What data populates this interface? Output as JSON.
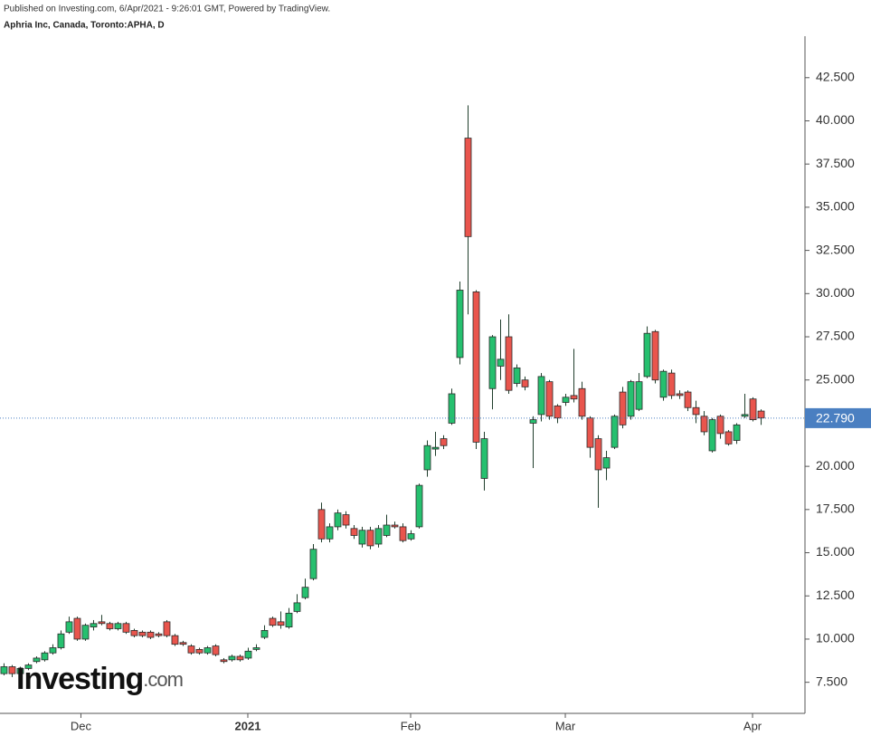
{
  "header": {
    "published": "Published on Investing.com, 6/Apr/2021 - 9:26:01 GMT, Powered by TradingView.",
    "symbol": "Aphria Inc, Canada, Toronto:APHA, D"
  },
  "logo": {
    "brand": "Investing",
    "suffix": ".com"
  },
  "chart_data": {
    "type": "candlestick",
    "up_color": "#26c06f",
    "down_color": "#e9554d",
    "open": [
      8.0,
      8.4,
      8.0,
      8.3,
      8.7,
      8.8,
      9.2,
      9.5,
      10.4,
      11.2,
      10.0,
      10.7,
      11.0,
      10.9,
      10.6,
      10.9,
      10.5,
      10.4,
      10.4,
      10.3,
      11.0,
      10.2,
      9.8,
      9.6,
      9.4,
      9.2,
      9.6,
      8.8,
      8.8,
      9.0,
      8.9,
      9.4,
      10.1,
      11.2,
      11.0,
      10.7,
      11.6,
      12.4,
      13.5,
      17.5,
      15.8,
      16.5,
      17.2,
      16.4,
      15.5,
      16.3,
      15.5,
      16.0,
      16.6,
      16.5,
      15.8,
      16.5,
      19.8,
      21.0,
      21.6,
      22.5,
      26.3,
      39.0,
      30.1,
      19.3,
      24.5,
      25.8,
      27.5,
      24.8,
      25.0,
      22.5,
      23.0,
      24.9,
      23.5,
      23.7,
      24.1,
      24.5,
      22.8,
      21.6,
      19.9,
      21.1,
      24.3,
      22.9,
      23.3,
      25.2,
      27.8,
      24.0,
      25.4,
      24.2,
      24.3,
      23.4,
      22.9,
      20.9,
      22.9,
      22.0,
      21.5,
      22.9,
      23.9,
      23.2
    ],
    "high": [
      8.6,
      8.5,
      8.4,
      8.6,
      9.0,
      9.3,
      9.7,
      10.5,
      11.3,
      11.3,
      10.9,
      11.1,
      11.4,
      11.0,
      11.0,
      11.0,
      10.6,
      10.5,
      10.5,
      10.4,
      11.1,
      10.3,
      9.9,
      9.7,
      9.5,
      9.6,
      9.7,
      8.9,
      9.1,
      9.1,
      9.5,
      9.7,
      10.8,
      11.3,
      11.6,
      11.8,
      12.6,
      13.5,
      15.5,
      17.9,
      16.7,
      17.5,
      17.4,
      16.6,
      16.5,
      16.5,
      16.6,
      17.2,
      16.8,
      16.7,
      16.3,
      19.0,
      21.5,
      22.0,
      21.8,
      24.5,
      30.7,
      40.9,
      30.2,
      22.0,
      27.6,
      28.5,
      28.8,
      25.9,
      25.2,
      22.9,
      25.4,
      25.0,
      23.6,
      24.2,
      26.8,
      24.9,
      22.9,
      21.8,
      20.9,
      23.0,
      24.6,
      25.0,
      25.4,
      28.1,
      27.9,
      25.6,
      25.6,
      24.4,
      24.4,
      23.8,
      23.2,
      22.8,
      23.0,
      22.1,
      22.5,
      24.2,
      24.0,
      23.3
    ],
    "low": [
      7.9,
      7.8,
      7.9,
      8.2,
      8.6,
      8.7,
      9.1,
      9.4,
      10.3,
      9.9,
      9.9,
      10.5,
      10.8,
      10.5,
      10.5,
      10.3,
      10.1,
      10.1,
      10.0,
      10.1,
      10.1,
      9.6,
      9.6,
      9.1,
      9.1,
      9.1,
      9.0,
      8.6,
      8.7,
      8.7,
      8.8,
      9.3,
      10.0,
      10.7,
      10.6,
      10.6,
      11.5,
      12.3,
      13.4,
      15.6,
      15.6,
      16.3,
      16.4,
      15.8,
      15.3,
      15.2,
      15.3,
      15.9,
      16.4,
      15.6,
      15.7,
      16.4,
      19.4,
      20.6,
      21.0,
      22.4,
      25.9,
      28.8,
      21.0,
      18.6,
      23.3,
      25.0,
      24.2,
      24.6,
      24.4,
      19.9,
      22.6,
      22.7,
      22.5,
      23.5,
      23.7,
      22.7,
      20.5,
      17.6,
      19.2,
      21.0,
      22.2,
      22.7,
      23.2,
      25.1,
      24.8,
      23.8,
      23.9,
      23.9,
      23.2,
      22.5,
      21.8,
      20.8,
      21.6,
      21.2,
      21.3,
      22.8,
      22.6,
      22.4
    ],
    "close": [
      8.4,
      8.0,
      8.3,
      8.5,
      8.9,
      9.2,
      9.5,
      10.3,
      11.0,
      10.0,
      10.8,
      10.9,
      10.9,
      10.6,
      10.9,
      10.4,
      10.2,
      10.2,
      10.1,
      10.2,
      10.2,
      9.7,
      9.7,
      9.2,
      9.2,
      9.5,
      9.1,
      8.7,
      9.0,
      8.8,
      9.3,
      9.5,
      10.5,
      10.8,
      10.8,
      11.5,
      12.1,
      13.0,
      15.2,
      15.8,
      16.5,
      17.3,
      16.6,
      16.0,
      16.3,
      15.4,
      16.4,
      16.6,
      16.5,
      15.7,
      16.1,
      18.9,
      21.2,
      21.1,
      21.2,
      24.2,
      30.2,
      33.3,
      21.4,
      21.6,
      27.5,
      26.2,
      24.4,
      25.7,
      24.6,
      22.7,
      25.2,
      22.9,
      22.8,
      24.0,
      23.9,
      22.9,
      21.1,
      19.8,
      20.5,
      22.9,
      22.4,
      24.9,
      24.9,
      27.7,
      25.0,
      25.5,
      24.1,
      24.1,
      23.4,
      23.0,
      22.0,
      22.7,
      21.9,
      21.3,
      22.4,
      23.0,
      22.7,
      22.8
    ],
    "xlim": [
      -0.44,
      98.44
    ],
    "xticks": [
      {
        "value": 9.5,
        "label": "Dec"
      },
      {
        "value": 30,
        "label": "2021"
      },
      {
        "value": 50,
        "label": "Feb"
      },
      {
        "value": 69,
        "label": "Mar"
      },
      {
        "value": 92,
        "label": "Apr"
      }
    ],
    "ylim": [
      5.7,
      44.9
    ],
    "yticks": [
      {
        "value": 7.5,
        "label": "7.500"
      },
      {
        "value": 10,
        "label": "10.000"
      },
      {
        "value": 12.5,
        "label": "12.500"
      },
      {
        "value": 15,
        "label": "15.000"
      },
      {
        "value": 17.5,
        "label": "17.500"
      },
      {
        "value": 20,
        "label": "20.000"
      },
      {
        "value": 22.5,
        "label": "22.500"
      },
      {
        "value": 25,
        "label": "25.000"
      },
      {
        "value": 27.5,
        "label": "27.500"
      },
      {
        "value": 30,
        "label": "30.000"
      },
      {
        "value": 32.5,
        "label": "32.500"
      },
      {
        "value": 35,
        "label": "35.000"
      },
      {
        "value": 37.5,
        "label": "37.500"
      },
      {
        "value": 40,
        "label": "40.000"
      },
      {
        "value": 42.5,
        "label": "42.500"
      }
    ],
    "last_price": {
      "value": 22.79,
      "label": "22.790",
      "color": "#4a7fc1"
    },
    "grid": false
  }
}
